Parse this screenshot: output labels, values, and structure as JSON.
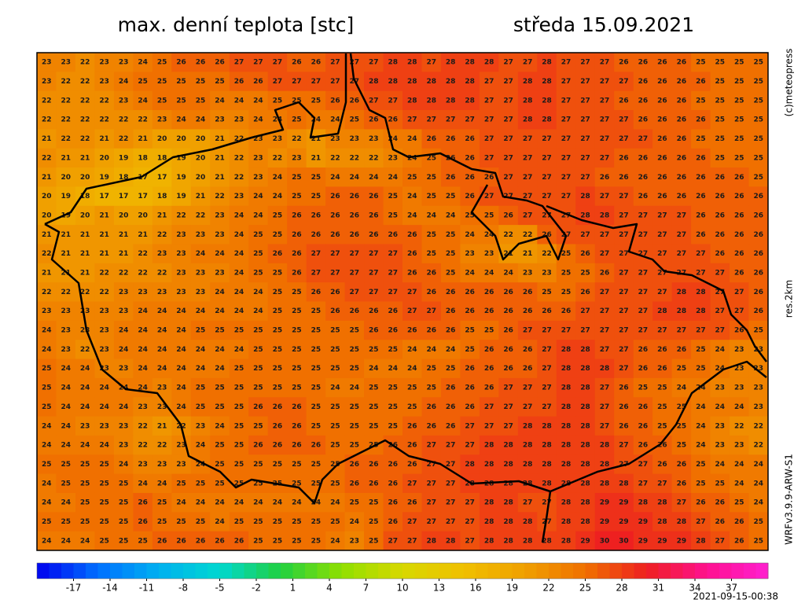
{
  "header": {
    "title": "max. denní teplota [stc]",
    "date": "středa 15.09.2021"
  },
  "side_labels": [
    "(c)meteopress",
    "res.2km",
    "WRFv3.9.9-ARW-S1"
  ],
  "timestamp": "2021-09-15-00:38",
  "grid": [
    [
      23,
      23,
      22,
      23,
      23,
      24,
      25,
      26,
      26,
      26,
      27,
      27,
      27,
      26,
      26,
      27,
      27,
      27,
      28,
      28,
      27,
      28,
      28,
      28,
      27,
      27,
      28,
      27,
      27,
      27,
      26,
      26,
      26,
      26,
      25,
      25,
      25,
      25
    ],
    [
      23,
      22,
      22,
      23,
      24,
      25,
      25,
      25,
      25,
      25,
      26,
      26,
      27,
      27,
      27,
      27,
      27,
      28,
      28,
      28,
      28,
      28,
      28,
      27,
      27,
      28,
      28,
      27,
      27,
      27,
      27,
      26,
      26,
      26,
      26,
      25,
      25,
      25
    ],
    [
      22,
      22,
      22,
      22,
      23,
      24,
      25,
      25,
      25,
      24,
      24,
      24,
      25,
      25,
      25,
      26,
      26,
      27,
      27,
      28,
      28,
      28,
      28,
      27,
      27,
      28,
      28,
      27,
      27,
      27,
      26,
      26,
      26,
      26,
      25,
      25,
      25,
      25
    ],
    [
      22,
      22,
      22,
      22,
      22,
      22,
      23,
      24,
      24,
      23,
      23,
      24,
      24,
      25,
      24,
      24,
      25,
      26,
      26,
      27,
      27,
      27,
      27,
      27,
      27,
      28,
      28,
      27,
      27,
      27,
      27,
      26,
      26,
      26,
      26,
      25,
      25,
      25
    ],
    [
      21,
      22,
      22,
      21,
      22,
      21,
      20,
      20,
      20,
      21,
      22,
      23,
      23,
      22,
      21,
      23,
      23,
      23,
      24,
      24,
      26,
      26,
      26,
      27,
      27,
      27,
      27,
      27,
      27,
      27,
      27,
      27,
      26,
      26,
      25,
      25,
      25,
      25
    ],
    [
      22,
      21,
      21,
      20,
      19,
      18,
      18,
      19,
      20,
      21,
      22,
      23,
      22,
      23,
      21,
      22,
      22,
      22,
      23,
      24,
      25,
      26,
      26,
      27,
      27,
      27,
      27,
      27,
      27,
      27,
      26,
      26,
      26,
      26,
      26,
      25,
      25,
      25
    ],
    [
      21,
      20,
      20,
      19,
      18,
      17,
      17,
      19,
      20,
      21,
      22,
      23,
      24,
      25,
      25,
      24,
      24,
      24,
      24,
      25,
      25,
      26,
      26,
      26,
      27,
      27,
      27,
      27,
      27,
      26,
      26,
      26,
      26,
      26,
      26,
      26,
      26,
      25
    ],
    [
      20,
      19,
      18,
      17,
      17,
      17,
      18,
      19,
      21,
      22,
      23,
      24,
      24,
      25,
      25,
      26,
      26,
      26,
      25,
      24,
      25,
      25,
      26,
      27,
      27,
      27,
      27,
      27,
      28,
      27,
      27,
      26,
      26,
      26,
      26,
      26,
      26,
      26
    ],
    [
      20,
      19,
      20,
      21,
      20,
      20,
      21,
      22,
      22,
      23,
      24,
      24,
      25,
      26,
      26,
      26,
      26,
      26,
      25,
      24,
      24,
      24,
      25,
      25,
      26,
      27,
      27,
      27,
      28,
      28,
      27,
      27,
      27,
      27,
      26,
      26,
      26,
      26
    ],
    [
      21,
      21,
      21,
      21,
      21,
      21,
      22,
      23,
      23,
      23,
      24,
      25,
      25,
      26,
      26,
      26,
      26,
      26,
      26,
      26,
      25,
      25,
      24,
      24,
      22,
      22,
      26,
      27,
      27,
      27,
      27,
      27,
      27,
      27,
      26,
      26,
      26,
      26
    ],
    [
      22,
      21,
      21,
      21,
      21,
      22,
      23,
      23,
      24,
      24,
      24,
      25,
      26,
      26,
      27,
      27,
      27,
      27,
      27,
      26,
      25,
      25,
      23,
      23,
      21,
      21,
      22,
      25,
      26,
      27,
      27,
      27,
      27,
      27,
      27,
      26,
      26,
      26
    ],
    [
      21,
      21,
      21,
      22,
      22,
      22,
      22,
      23,
      23,
      23,
      24,
      25,
      25,
      26,
      27,
      27,
      27,
      27,
      27,
      26,
      26,
      25,
      24,
      24,
      24,
      23,
      23,
      25,
      25,
      26,
      27,
      27,
      27,
      27,
      27,
      27,
      26,
      26
    ],
    [
      22,
      22,
      22,
      22,
      23,
      23,
      23,
      23,
      23,
      24,
      24,
      24,
      25,
      25,
      26,
      26,
      27,
      27,
      27,
      27,
      26,
      26,
      26,
      26,
      26,
      26,
      25,
      25,
      26,
      27,
      27,
      27,
      27,
      28,
      28,
      27,
      27,
      26
    ],
    [
      23,
      23,
      23,
      23,
      23,
      24,
      24,
      24,
      24,
      24,
      24,
      24,
      25,
      25,
      25,
      26,
      26,
      26,
      26,
      27,
      27,
      26,
      26,
      26,
      26,
      26,
      26,
      26,
      27,
      27,
      27,
      27,
      28,
      28,
      28,
      27,
      27,
      26
    ],
    [
      24,
      23,
      23,
      23,
      24,
      24,
      24,
      24,
      25,
      25,
      25,
      25,
      25,
      25,
      25,
      25,
      25,
      26,
      26,
      26,
      26,
      26,
      25,
      25,
      26,
      27,
      27,
      27,
      27,
      27,
      27,
      27,
      27,
      27,
      27,
      27,
      26,
      25
    ],
    [
      24,
      23,
      22,
      23,
      24,
      24,
      24,
      24,
      24,
      24,
      24,
      25,
      25,
      25,
      25,
      25,
      25,
      25,
      25,
      24,
      24,
      24,
      25,
      26,
      26,
      26,
      27,
      28,
      28,
      27,
      27,
      26,
      26,
      26,
      25,
      24,
      23,
      23
    ],
    [
      25,
      24,
      24,
      23,
      23,
      24,
      24,
      24,
      24,
      24,
      25,
      25,
      25,
      25,
      25,
      25,
      25,
      24,
      24,
      24,
      25,
      25,
      26,
      26,
      26,
      26,
      27,
      28,
      28,
      28,
      27,
      26,
      26,
      25,
      25,
      24,
      23,
      23
    ],
    [
      25,
      24,
      24,
      24,
      24,
      24,
      23,
      24,
      25,
      25,
      25,
      25,
      25,
      25,
      25,
      24,
      24,
      25,
      25,
      25,
      25,
      26,
      26,
      26,
      27,
      27,
      27,
      28,
      28,
      27,
      26,
      25,
      25,
      24,
      24,
      23,
      23,
      23
    ],
    [
      25,
      24,
      24,
      24,
      24,
      23,
      23,
      24,
      25,
      25,
      25,
      26,
      26,
      26,
      25,
      25,
      25,
      25,
      25,
      25,
      26,
      26,
      26,
      27,
      27,
      27,
      27,
      28,
      28,
      27,
      26,
      26,
      25,
      25,
      24,
      24,
      24,
      23
    ],
    [
      24,
      24,
      23,
      23,
      23,
      22,
      21,
      22,
      23,
      24,
      25,
      25,
      26,
      26,
      25,
      25,
      25,
      25,
      25,
      26,
      26,
      26,
      27,
      27,
      27,
      28,
      28,
      28,
      28,
      27,
      26,
      26,
      25,
      25,
      24,
      23,
      22,
      22
    ],
    [
      24,
      24,
      24,
      24,
      23,
      22,
      22,
      23,
      24,
      25,
      25,
      26,
      26,
      26,
      26,
      25,
      25,
      25,
      26,
      26,
      27,
      27,
      27,
      28,
      28,
      28,
      28,
      28,
      28,
      28,
      27,
      26,
      26,
      25,
      24,
      23,
      23,
      22
    ],
    [
      25,
      25,
      25,
      25,
      24,
      23,
      23,
      23,
      24,
      25,
      25,
      25,
      25,
      25,
      25,
      25,
      26,
      26,
      26,
      26,
      27,
      27,
      28,
      28,
      28,
      28,
      28,
      28,
      28,
      28,
      27,
      27,
      26,
      26,
      25,
      24,
      24,
      24
    ],
    [
      24,
      25,
      25,
      25,
      25,
      24,
      24,
      25,
      25,
      25,
      25,
      25,
      25,
      25,
      25,
      25,
      26,
      26,
      26,
      27,
      27,
      27,
      28,
      28,
      28,
      28,
      28,
      28,
      28,
      28,
      28,
      27,
      27,
      26,
      25,
      25,
      24,
      24
    ],
    [
      24,
      24,
      25,
      25,
      25,
      26,
      25,
      24,
      24,
      24,
      24,
      24,
      24,
      24,
      24,
      24,
      25,
      25,
      26,
      26,
      27,
      27,
      27,
      28,
      28,
      27,
      27,
      28,
      28,
      29,
      29,
      28,
      28,
      27,
      26,
      26,
      25,
      24
    ],
    [
      25,
      25,
      25,
      25,
      25,
      26,
      25,
      25,
      25,
      24,
      25,
      25,
      25,
      25,
      25,
      25,
      24,
      25,
      26,
      27,
      27,
      27,
      27,
      28,
      28,
      28,
      27,
      28,
      28,
      29,
      29,
      29,
      28,
      28,
      27,
      26,
      26,
      25
    ],
    [
      24,
      24,
      24,
      25,
      25,
      25,
      26,
      26,
      26,
      26,
      26,
      25,
      25,
      25,
      25,
      24,
      23,
      25,
      27,
      27,
      28,
      28,
      27,
      28,
      28,
      28,
      28,
      28,
      29,
      30,
      30,
      29,
      29,
      29,
      28,
      27,
      26,
      25
    ]
  ],
  "colorbar": {
    "lim": [
      -20,
      40
    ],
    "ticks": [
      -17,
      -14,
      -11,
      -8,
      -5,
      -2,
      1,
      4,
      7,
      10,
      13,
      16,
      19,
      22,
      25,
      28,
      31,
      34,
      37
    ],
    "colors": [
      "#0000ee",
      "#0070ff",
      "#00b0f0",
      "#00d8d0",
      "#20d040",
      "#90e000",
      "#d8d800",
      "#f0c000",
      "#f0a000",
      "#f07000",
      "#ee2020",
      "#ff1090",
      "#ff20d0"
    ]
  }
}
